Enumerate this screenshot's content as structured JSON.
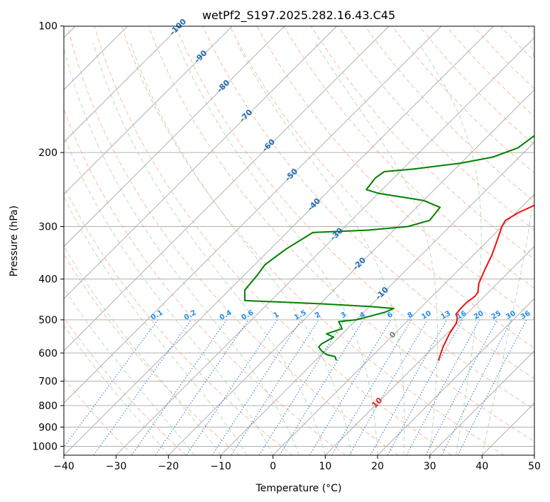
{
  "chart_data": {
    "type": "line",
    "title": "wetPf2_S197.2025.282.16.43.C45",
    "xlabel": "Temperature (°C)",
    "ylabel": "Pressure (hPa)",
    "xlim": [
      -40,
      50
    ],
    "ylim": [
      1050,
      100
    ],
    "yscale": "log",
    "x_ticks": [
      -40,
      -30,
      -20,
      -10,
      0,
      10,
      20,
      30,
      40,
      50
    ],
    "x_tick_labels": [
      "−40",
      "−30",
      "−20",
      "−10",
      "0",
      "10",
      "20",
      "30",
      "40",
      "50"
    ],
    "y_ticks": [
      1000,
      900,
      800,
      700,
      600,
      500,
      400,
      300,
      200,
      100
    ],
    "y_tick_labels": [
      "1000",
      "900",
      "800",
      "700",
      "600",
      "500",
      "400",
      "300",
      "200",
      "100"
    ],
    "grid": true,
    "series": [
      {
        "name": "Temperature",
        "color": "#ee1111",
        "points": [
          [
            13.5,
            625
          ],
          [
            11.8,
            580
          ],
          [
            10.5,
            540
          ],
          [
            9.8,
            510
          ],
          [
            9.0,
            495
          ],
          [
            8.0,
            485
          ],
          [
            7.8,
            470
          ],
          [
            7.8,
            455
          ],
          [
            8.2,
            440
          ],
          [
            8.0,
            430
          ],
          [
            6.5,
            410
          ],
          [
            5.0,
            380
          ],
          [
            3.5,
            350
          ],
          [
            1.5,
            320
          ],
          [
            0,
            300
          ],
          [
            -0.5,
            290
          ],
          [
            0.5,
            278
          ],
          [
            3,
            262
          ],
          [
            5.5,
            245
          ],
          [
            7,
            230
          ],
          [
            8,
            215
          ],
          [
            8.2,
            200
          ],
          [
            8.5,
            185
          ],
          [
            9.5,
            170
          ],
          [
            9.5,
            150
          ],
          [
            9.8,
            140
          ],
          [
            11,
            130
          ],
          [
            13,
            120
          ],
          [
            15,
            112
          ],
          [
            17,
            105
          ],
          [
            18,
            100
          ]
        ]
      },
      {
        "name": "Dewpoint",
        "color": "#008000",
        "points": [
          [
            -6,
            625
          ],
          [
            -7,
            612
          ],
          [
            -9,
            605
          ],
          [
            -10,
            598
          ],
          [
            -11,
            590
          ],
          [
            -12,
            580
          ],
          [
            -12,
            570
          ],
          [
            -11,
            550
          ],
          [
            -13,
            540
          ],
          [
            -11,
            525
          ],
          [
            -12,
            515
          ],
          [
            -13,
            505
          ],
          [
            -10,
            500
          ],
          [
            -8,
            490
          ],
          [
            -6,
            480
          ],
          [
            -5,
            470
          ],
          [
            -10,
            465
          ],
          [
            -20,
            458
          ],
          [
            -35,
            450
          ],
          [
            -37,
            425
          ],
          [
            -37.5,
            390
          ],
          [
            -38,
            370
          ],
          [
            -37,
            340
          ],
          [
            -35,
            310
          ],
          [
            -25,
            306
          ],
          [
            -18,
            300
          ],
          [
            -15,
            290
          ],
          [
            -15.5,
            270
          ],
          [
            -20,
            260
          ],
          [
            -30,
            250
          ],
          [
            -33,
            245
          ],
          [
            -33.5,
            230
          ],
          [
            -33,
            222
          ],
          [
            -28,
            219
          ],
          [
            -20,
            212
          ],
          [
            -15,
            205
          ],
          [
            -12,
            195
          ],
          [
            -11,
            180
          ],
          [
            -9,
            165
          ],
          [
            -6,
            150
          ],
          [
            -5,
            135
          ],
          [
            -3,
            122
          ],
          [
            -2,
            111
          ],
          [
            0,
            103
          ],
          [
            0.8,
            100
          ]
        ]
      }
    ],
    "label_sets": {
      "dry_adiabat_labels": [
        "-100",
        "-90",
        "-80",
        "-70",
        "-60",
        "-50",
        "-40",
        "-30",
        "-20",
        "-10",
        "0",
        "10",
        "20",
        "30",
        "40"
      ],
      "mixing_ratio_labels": [
        "0.1",
        "0.2",
        "0.4",
        "0.6",
        "1",
        "1.5",
        "2",
        "3",
        "4",
        "6",
        "8",
        "10",
        "13",
        "16",
        "20",
        "25",
        "30",
        "36"
      ]
    }
  }
}
